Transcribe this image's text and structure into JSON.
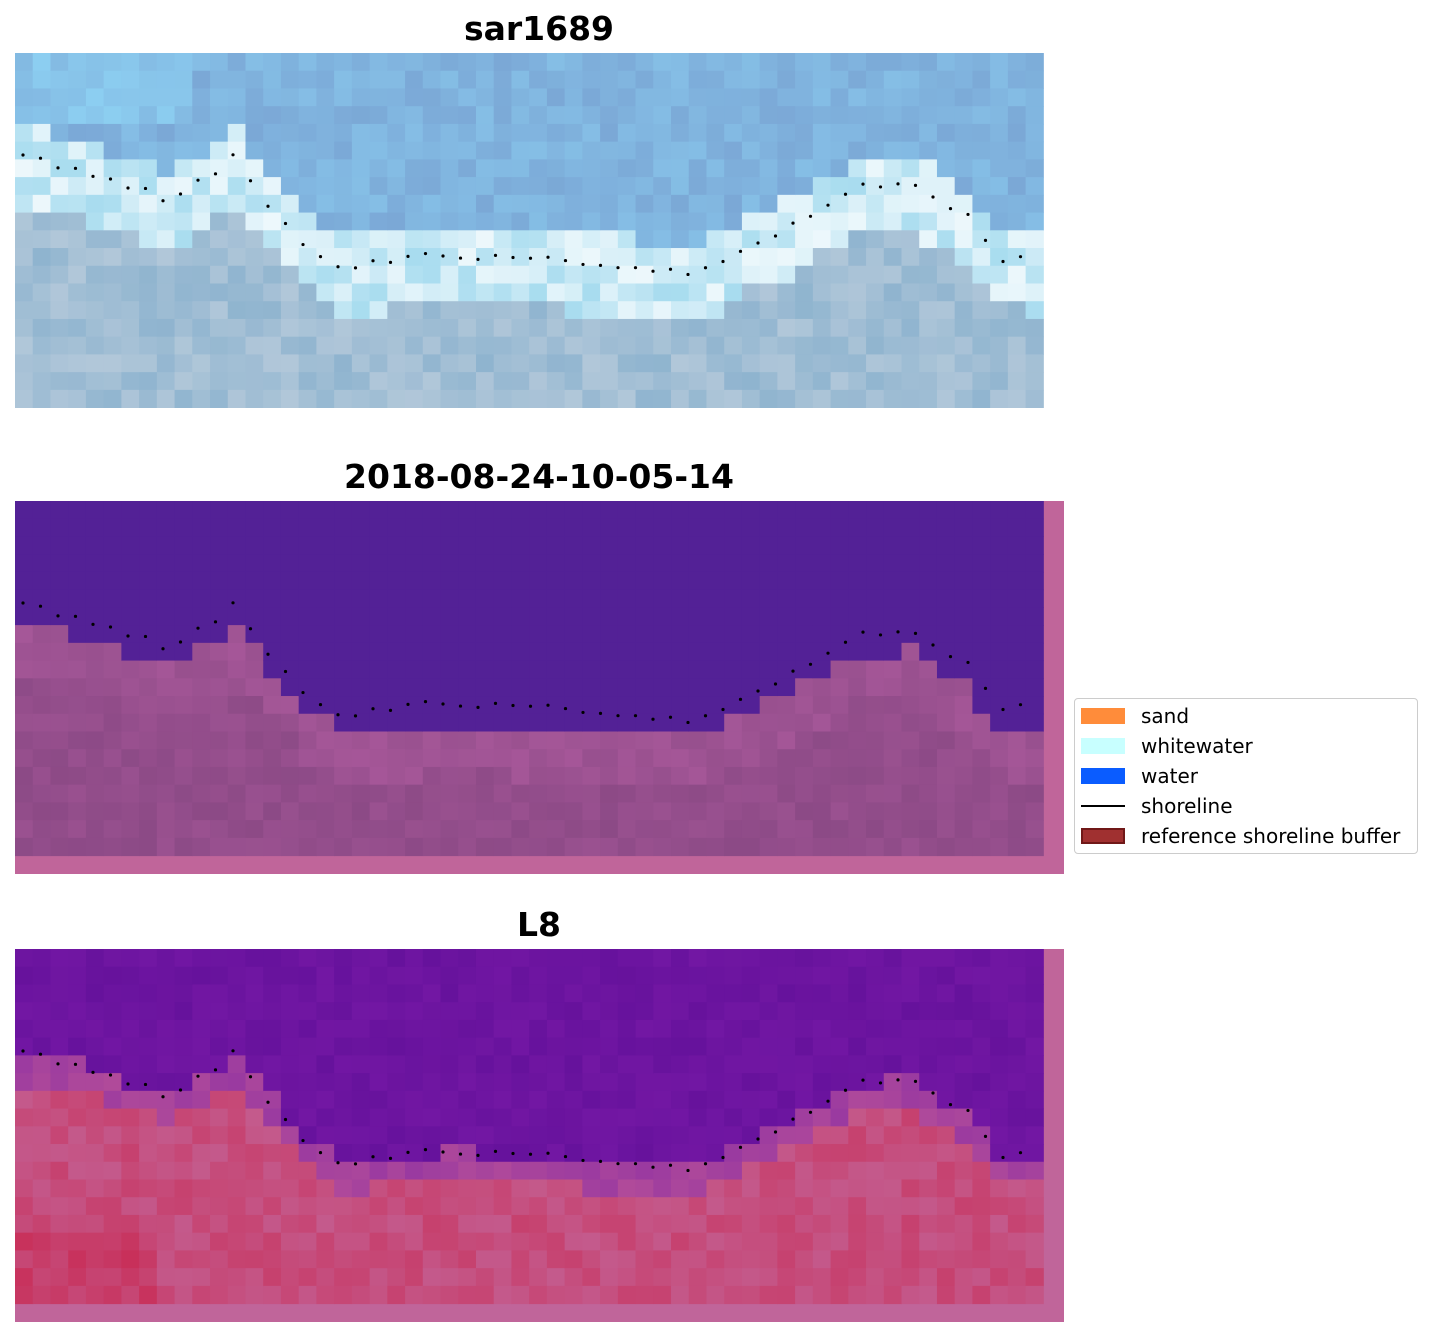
{
  "panels": [
    {
      "title": "sar1689",
      "style": "rgb"
    },
    {
      "title": "2018-08-24-10-05-14",
      "style": "classified"
    },
    {
      "title": "L8",
      "style": "index"
    }
  ],
  "legend": {
    "items": [
      {
        "label": "sand",
        "color": "#ff8c3a",
        "kind": "patch"
      },
      {
        "label": "whitewater",
        "color": "#c8ffff",
        "kind": "patch"
      },
      {
        "label": "water",
        "color": "#0a5cff",
        "kind": "patch"
      },
      {
        "label": "shoreline",
        "color": "#000000",
        "kind": "line"
      },
      {
        "label": "reference shoreline buffer",
        "color": "#a03030",
        "kind": "patch"
      }
    ]
  },
  "colors": {
    "sky_blue": "#7ba8d6",
    "deep_purple": "#532196",
    "buffer_pink": "#c0659a",
    "land_mauve": "#8c4a86",
    "index_purple": "#66129c",
    "index_red": "#c8305a"
  }
}
